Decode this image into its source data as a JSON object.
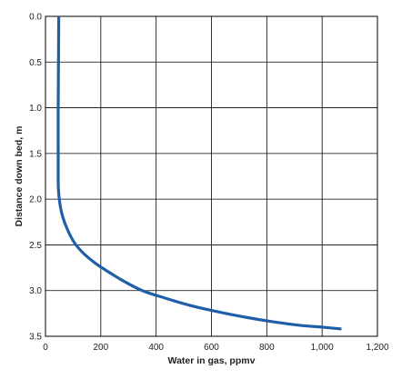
{
  "chart_data": {
    "type": "line",
    "title": "",
    "xlabel": "Water in gas, ppmv",
    "ylabel": "Distance down bed, m",
    "xlim": [
      0,
      1200
    ],
    "ylim": [
      0,
      3.5
    ],
    "y_inverted": true,
    "x_ticks": [
      0,
      200,
      400,
      600,
      800,
      1000,
      1200
    ],
    "x_tick_labels": [
      "0",
      "200",
      "400",
      "600",
      "800",
      "1,000",
      "1,200"
    ],
    "y_ticks": [
      0,
      0.5,
      1,
      1.5,
      2,
      2.5,
      3,
      3.5
    ],
    "y_tick_labels": [
      "0.0",
      "0.5",
      "1.0",
      "1.5",
      "2.0",
      "2.5",
      "3.0",
      "3.5"
    ],
    "grid": true,
    "legend": "none",
    "series": [
      {
        "color": "#1f5fa8",
        "x": [
          48,
          47,
          46,
          46,
          46,
          47,
          50,
          55,
          63,
          75,
          90,
          110,
          140,
          180,
          230,
          285,
          350,
          430,
          520,
          620,
          720,
          820,
          920,
          1000,
          1070
        ],
        "y": [
          0.0,
          0.5,
          1.0,
          1.5,
          1.8,
          1.9,
          2.0,
          2.1,
          2.2,
          2.3,
          2.4,
          2.5,
          2.6,
          2.7,
          2.8,
          2.9,
          3.0,
          3.08,
          3.16,
          3.23,
          3.29,
          3.34,
          3.38,
          3.4,
          3.42
        ]
      }
    ]
  }
}
